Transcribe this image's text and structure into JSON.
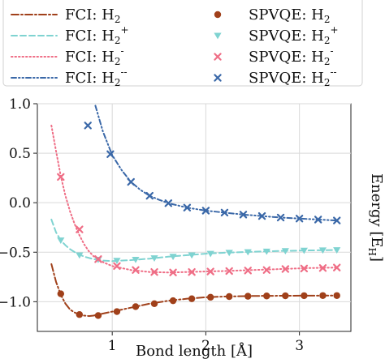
{
  "chart_data": {
    "type": "line",
    "xlabel": "Bond length [Å]",
    "ylabel": "Energy [E",
    "ylabel_sub": "H",
    "ylabel_close": "]",
    "xlim": [
      0.2,
      3.55
    ],
    "ylim": [
      -1.3,
      1.0
    ],
    "xticks": [
      1,
      2,
      3
    ],
    "yticks": [
      -1.0,
      -0.5,
      0.0,
      0.5,
      1.0
    ],
    "xtick_labels": [
      "1",
      "2",
      "3"
    ],
    "ytick_labels": [
      "−1.0",
      "−0.5",
      "0.0",
      "0.5",
      "1.0"
    ],
    "grid": true,
    "legend_placement": "top (above plot, two columns)",
    "legend": [
      {
        "prefix": "FCI: H",
        "sub": "2",
        "sup": "",
        "kind": "line",
        "series": 0
      },
      {
        "prefix": "SPVQE: H",
        "sub": "2",
        "sup": "",
        "kind": "marker",
        "series": 0
      },
      {
        "prefix": "FCI: H",
        "sub": "2",
        "sup": "+",
        "kind": "line",
        "series": 1
      },
      {
        "prefix": "SPVQE: H",
        "sub": "2",
        "sup": "+",
        "kind": "marker",
        "series": 1
      },
      {
        "prefix": "FCI: H",
        "sub": "2",
        "sup": "-",
        "kind": "line",
        "series": 2
      },
      {
        "prefix": "SPVQE: H",
        "sub": "2",
        "sup": "-",
        "kind": "marker",
        "series": 2
      },
      {
        "prefix": "FCI: H",
        "sub": "2",
        "sup": "--",
        "kind": "line",
        "series": 3
      },
      {
        "prefix": "SPVQE: H",
        "sub": "2",
        "sup": "--",
        "kind": "marker",
        "series": 3
      }
    ],
    "series": [
      {
        "name": "H2",
        "color": "#a0401a",
        "dash": "dashdot",
        "marker": "circle",
        "fci": {
          "x": [
            0.35,
            0.4,
            0.45,
            0.5,
            0.55,
            0.6,
            0.65,
            0.7,
            0.75,
            0.8,
            0.9,
            1.0,
            1.2,
            1.4,
            1.6,
            1.8,
            2.0,
            2.2,
            2.5,
            2.8,
            3.1,
            3.4
          ],
          "y": [
            -0.62,
            -0.8,
            -0.93,
            -1.02,
            -1.08,
            -1.11,
            -1.13,
            -1.14,
            -1.145,
            -1.14,
            -1.12,
            -1.1,
            -1.06,
            -1.02,
            -0.99,
            -0.97,
            -0.955,
            -0.948,
            -0.942,
            -0.94,
            -0.939,
            -0.938
          ]
        },
        "vqe": {
          "x": [
            0.45,
            0.65,
            0.85,
            1.05,
            1.25,
            1.45,
            1.65,
            1.85,
            2.05,
            2.25,
            2.45,
            2.65,
            2.85,
            3.05,
            3.25,
            3.4
          ],
          "y": [
            -0.92,
            -1.13,
            -1.14,
            -1.1,
            -1.05,
            -1.02,
            -0.99,
            -0.97,
            -0.955,
            -0.948,
            -0.945,
            -0.942,
            -0.94,
            -0.939,
            -0.938,
            -0.938
          ]
        }
      },
      {
        "name": "H2+",
        "color": "#7fd3d1",
        "dash": "dashed",
        "marker": "triangle-down",
        "fci": {
          "x": [
            0.35,
            0.4,
            0.45,
            0.5,
            0.55,
            0.6,
            0.7,
            0.8,
            0.9,
            1.0,
            1.2,
            1.4,
            1.6,
            1.8,
            2.0,
            2.2,
            2.5,
            2.8,
            3.1,
            3.4
          ],
          "y": [
            -0.17,
            -0.3,
            -0.38,
            -0.43,
            -0.47,
            -0.5,
            -0.545,
            -0.57,
            -0.585,
            -0.59,
            -0.58,
            -0.565,
            -0.545,
            -0.53,
            -0.515,
            -0.505,
            -0.495,
            -0.487,
            -0.482,
            -0.478
          ]
        },
        "vqe": {
          "x": [
            0.45,
            0.65,
            0.85,
            1.05,
            1.25,
            1.45,
            1.65,
            1.85,
            2.05,
            2.25,
            2.45,
            2.65,
            2.85,
            3.05,
            3.25,
            3.4
          ],
          "y": [
            -0.38,
            -0.53,
            -0.575,
            -0.585,
            -0.575,
            -0.56,
            -0.545,
            -0.53,
            -0.515,
            -0.505,
            -0.498,
            -0.492,
            -0.487,
            -0.483,
            -0.48,
            -0.478
          ]
        }
      },
      {
        "name": "H2-",
        "color": "#ef6e86",
        "dash": "dotted",
        "marker": "x",
        "fci": {
          "x": [
            0.35,
            0.4,
            0.45,
            0.5,
            0.55,
            0.6,
            0.65,
            0.7,
            0.75,
            0.8,
            0.9,
            1.0,
            1.2,
            1.4,
            1.6,
            1.8,
            2.0,
            2.2,
            2.5,
            2.8,
            3.1,
            3.4
          ],
          "y": [
            0.78,
            0.52,
            0.27,
            0.07,
            -0.09,
            -0.22,
            -0.33,
            -0.42,
            -0.49,
            -0.54,
            -0.6,
            -0.64,
            -0.68,
            -0.7,
            -0.705,
            -0.7,
            -0.695,
            -0.69,
            -0.68,
            -0.67,
            -0.66,
            -0.655
          ]
        },
        "vqe": {
          "x": [
            0.45,
            0.65,
            0.85,
            1.05,
            1.25,
            1.45,
            1.65,
            1.85,
            2.05,
            2.25,
            2.45,
            2.65,
            2.85,
            3.05,
            3.25,
            3.4
          ],
          "y": [
            0.26,
            -0.27,
            -0.57,
            -0.64,
            -0.68,
            -0.7,
            -0.705,
            -0.7,
            -0.695,
            -0.69,
            -0.685,
            -0.68,
            -0.67,
            -0.665,
            -0.66,
            -0.655
          ]
        }
      },
      {
        "name": "H2--",
        "color": "#3a68a8",
        "dash": "dashdotdot",
        "marker": "x",
        "fci": {
          "x": [
            0.82,
            0.9,
            1.0,
            1.1,
            1.2,
            1.3,
            1.4,
            1.5,
            1.6,
            1.8,
            2.0,
            2.2,
            2.4,
            2.6,
            2.8,
            3.0,
            3.2,
            3.4
          ],
          "y": [
            0.98,
            0.72,
            0.48,
            0.33,
            0.21,
            0.13,
            0.07,
            0.03,
            -0.005,
            -0.05,
            -0.08,
            -0.1,
            -0.12,
            -0.135,
            -0.15,
            -0.16,
            -0.17,
            -0.18
          ]
        },
        "vqe": {
          "x": [
            0.98,
            1.2,
            1.4,
            1.6,
            1.8,
            2.0,
            2.2,
            2.4,
            2.6,
            2.8,
            3.0,
            3.2,
            3.4
          ],
          "y": [
            0.49,
            0.21,
            0.07,
            -0.005,
            -0.05,
            -0.08,
            -0.1,
            -0.12,
            -0.135,
            -0.15,
            -0.16,
            -0.17,
            -0.18
          ]
        },
        "vqe_extra": {
          "x": [
            0.74
          ],
          "y": [
            0.78
          ]
        }
      }
    ]
  }
}
